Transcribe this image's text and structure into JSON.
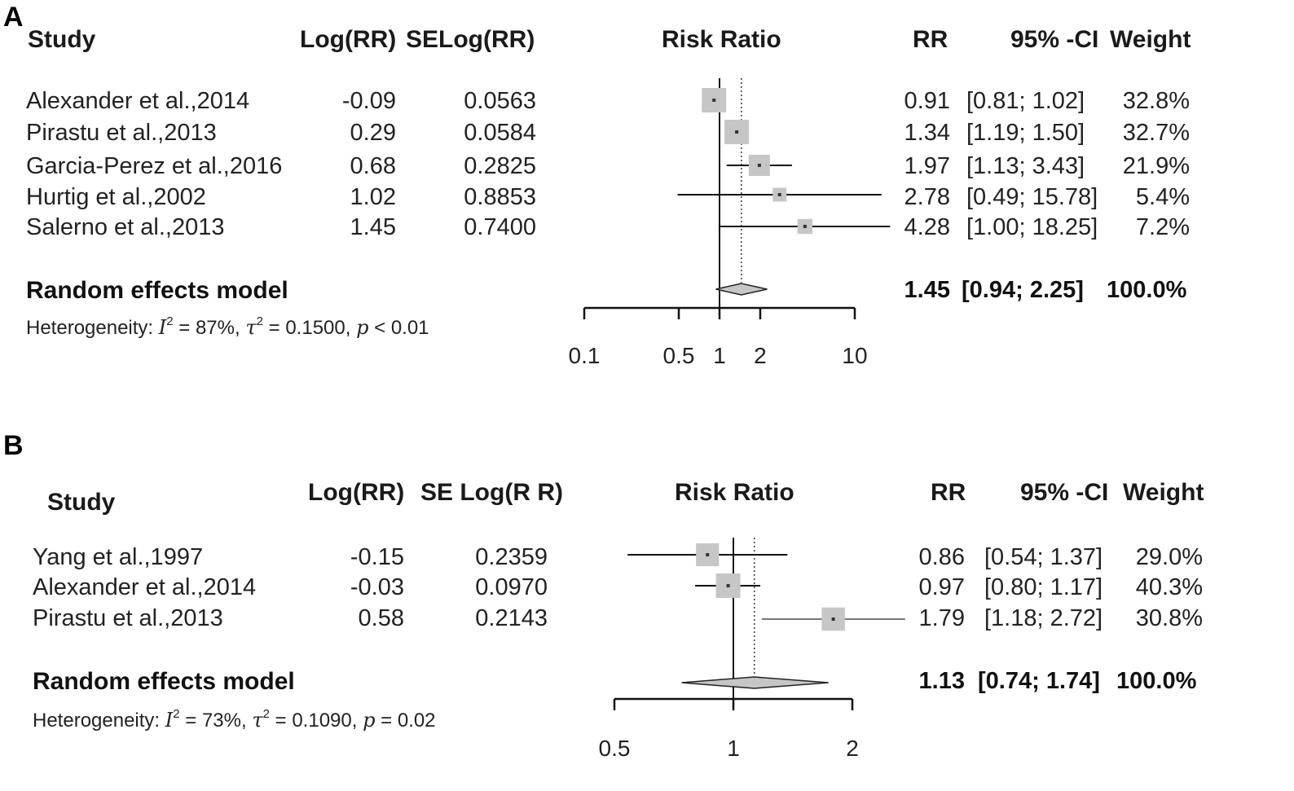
{
  "chart_data": [
    {
      "type": "forest",
      "panel_label": "A",
      "columns": {
        "study": "Study",
        "logrr": "Log(RR)",
        "selogrr": "SELog(RR)",
        "plot": "Risk Ratio",
        "rr": "RR",
        "ci": "95% -CI",
        "weight": "Weight"
      },
      "studies": [
        {
          "name": "Alexander et al.,2014",
          "logrr": "-0.09",
          "selogrr": "0.0563",
          "rr": 0.91,
          "lo": 0.81,
          "hi": 1.02,
          "rr_text": "0.91",
          "ci_text": "[0.81;  1.02]",
          "weight_text": "32.8%",
          "weight": 32.8
        },
        {
          "name": "Pirastu et al.,2013",
          "logrr": "0.29",
          "selogrr": "0.0584",
          "rr": 1.34,
          "lo": 1.19,
          "hi": 1.5,
          "rr_text": "1.34",
          "ci_text": "[1.19;  1.50]",
          "weight_text": "32.7%",
          "weight": 32.7
        },
        {
          "name": "Garcia-Perez et al.,2016",
          "logrr": "0.68",
          "selogrr": "0.2825",
          "rr": 1.97,
          "lo": 1.13,
          "hi": 3.43,
          "rr_text": "1.97",
          "ci_text": "[1.13;  3.43]",
          "weight_text": "21.9%",
          "weight": 21.9
        },
        {
          "name": "Hurtig et al.,2002",
          "logrr": "1.02",
          "selogrr": "0.8853",
          "rr": 2.78,
          "lo": 0.49,
          "hi": 15.78,
          "rr_text": "2.78",
          "ci_text": "[0.49; 15.78]",
          "weight_text": "5.4%",
          "weight": 5.4
        },
        {
          "name": "Salerno et al.,2013",
          "logrr": "1.45",
          "selogrr": "0.7400",
          "rr": 4.28,
          "lo": 1.0,
          "hi": 18.25,
          "rr_text": "4.28",
          "ci_text": "[1.00; 18.25]",
          "weight_text": "7.2%",
          "weight": 7.2
        }
      ],
      "pooled": {
        "name": "Random effects model",
        "rr": 1.45,
        "lo": 0.94,
        "hi": 2.25,
        "rr_text": "1.45",
        "ci_text": "[0.94;  2.25]",
        "weight_text": "100.0%"
      },
      "heterogeneity": {
        "prefix": "Heterogeneity: ",
        "i2": "87%",
        "tau2": "0.1500",
        "p_op": "<",
        "p": "0.01"
      },
      "axis": {
        "ticks": [
          0.1,
          0.5,
          1,
          2,
          10
        ],
        "tick_labels": [
          "0.1",
          "0.5",
          "1",
          "2",
          "10"
        ],
        "scale": "log",
        "null_line": 1
      },
      "colors": {
        "box": "#c6c6c6",
        "line": "#111111"
      }
    },
    {
      "type": "forest",
      "panel_label": "B",
      "columns": {
        "study": "Study",
        "logrr": "Log(RR)",
        "selogrr": "SE Log(R R)",
        "plot": "Risk Ratio",
        "rr": "RR",
        "ci": "95% -CI",
        "weight": "Weight"
      },
      "studies": [
        {
          "name": "Yang et al.,1997",
          "logrr": "-0.15",
          "selogrr": "0.2359",
          "rr": 0.86,
          "lo": 0.54,
          "hi": 1.37,
          "rr_text": "0.86",
          "ci_text": "[0.54; 1.37]",
          "weight_text": "29.0%",
          "weight": 29.0
        },
        {
          "name": "Alexander et al.,2014",
          "logrr": "-0.03",
          "selogrr": "0.0970",
          "rr": 0.97,
          "lo": 0.8,
          "hi": 1.17,
          "rr_text": "0.97",
          "ci_text": "[0.80; 1.17]",
          "weight_text": "40.3%",
          "weight": 40.3
        },
        {
          "name": "Pirastu et al.,2013",
          "logrr": "0.58",
          "selogrr": "0.2143",
          "rr": 1.79,
          "lo": 1.18,
          "hi": 2.72,
          "rr_text": "1.79",
          "ci_text": "[1.18; 2.72]",
          "weight_text": "30.8%",
          "weight": 30.8
        }
      ],
      "pooled": {
        "name": "Random effects model",
        "rr": 1.13,
        "lo": 0.74,
        "hi": 1.74,
        "rr_text": "1.13",
        "ci_text": "[0.74; 1.74]",
        "weight_text": "100.0%"
      },
      "heterogeneity": {
        "prefix": "Heterogeneity: ",
        "i2": "73%",
        "tau2": "0.1090",
        "p_op": "=",
        "p": "0.02"
      },
      "axis": {
        "ticks": [
          0.5,
          1,
          2
        ],
        "tick_labels": [
          "0.5",
          "1",
          "2"
        ],
        "scale": "log",
        "null_line": 1
      },
      "colors": {
        "box": "#c6c6c6",
        "line": "#111111"
      }
    }
  ]
}
